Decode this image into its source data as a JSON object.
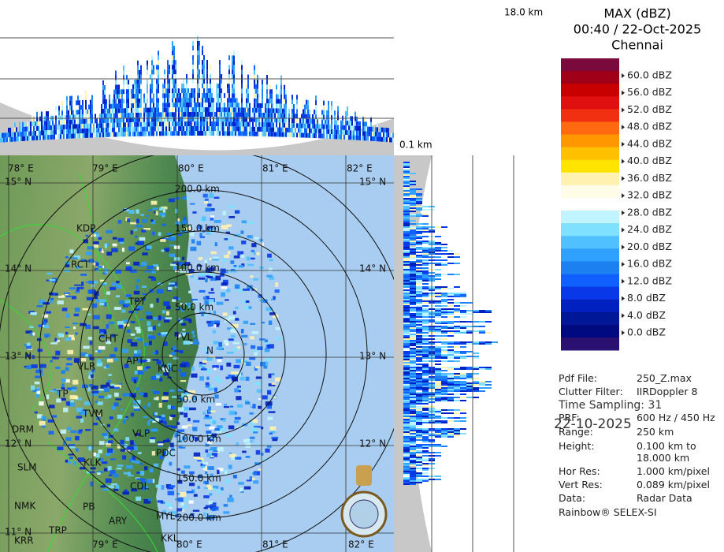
{
  "header": {
    "title": "MAX (dBZ)",
    "time": "00:40 / 22-Oct-2025",
    "site": "Chennai"
  },
  "profile_labels": {
    "top_height": "18.0 km",
    "side_height": "0.1 km"
  },
  "legend": {
    "labels": [
      "60.0 dBZ",
      "56.0 dBZ",
      "52.0 dBZ",
      "48.0 dBZ",
      "44.0 dBZ",
      "40.0 dBZ",
      "36.0 dBZ",
      "32.0 dBZ",
      "28.0 dBZ",
      "24.0 dBZ",
      "20.0 dBZ",
      "16.0 dBZ",
      "12.0 dBZ",
      "8.0 dBZ",
      "4.0 dBZ",
      "0.0 dBZ"
    ],
    "colors": [
      "#7a0a3c",
      "#a00018",
      "#c80000",
      "#e01010",
      "#f03010",
      "#ff6a10",
      "#ff9800",
      "#ffc000",
      "#ffe400",
      "#fff2b0",
      "#fffde8",
      "#ffffff",
      "#c0f4ff",
      "#80e0ff",
      "#50c0ff",
      "#30a0ff",
      "#1c80f0",
      "#1060ff",
      "#0838e8",
      "#0020c0",
      "#001898",
      "#000a80",
      "#2a1070"
    ]
  },
  "info": [
    {
      "label": "Pdf File:",
      "value": "250_Z.max"
    },
    {
      "label": "Clutter Filter:",
      "value": "IIRDoppler 8"
    },
    {
      "label": "PRF:",
      "value": "600 Hz / 450 Hz"
    },
    {
      "label": "Range:",
      "value": "250 km"
    },
    {
      "label": "Height:",
      "value": "0.100 km to 18.000 km"
    },
    {
      "label": "Hor Res:",
      "value": "1.000 km/pixel"
    },
    {
      "label": "Vert Res:",
      "value": "0.089 km/pixel"
    },
    {
      "label": "Data:",
      "value": "Radar Data"
    }
  ],
  "overlay": {
    "sampling": "Time Sampling: 31",
    "date": "22-10-2025"
  },
  "footer": "Rainbow® SELEX-SI",
  "map": {
    "lon_top": [
      "78° E",
      "79° E",
      "80° E",
      "81° E",
      "82° E"
    ],
    "lon_bottom": [
      "79° E",
      "80° E",
      "81° E",
      "82° E"
    ],
    "lat_left": [
      "15° N",
      "14° N",
      "13° N",
      "12° N",
      "11° N"
    ],
    "lat_right": [
      "15° N",
      "14° N",
      "13° N",
      "12° N"
    ],
    "ring_north": [
      "200.0 km",
      "150.0 km",
      "100.0 km",
      "50.0 km"
    ],
    "ring_south": [
      "50.0 km",
      "100.0 km",
      "150.0 km",
      "200.0 km"
    ],
    "places": [
      "KDP",
      "RCT",
      "TPT",
      "CHT",
      "TVL",
      "N",
      "VLR",
      "APT",
      "KNC",
      "TP",
      "TVM",
      "VLP",
      "DRM",
      "PDC",
      "KLK",
      "SLM",
      "CDL",
      "NMK",
      "PB",
      "ARY",
      "MYL",
      "TRP",
      "KRR",
      "KKL"
    ]
  }
}
